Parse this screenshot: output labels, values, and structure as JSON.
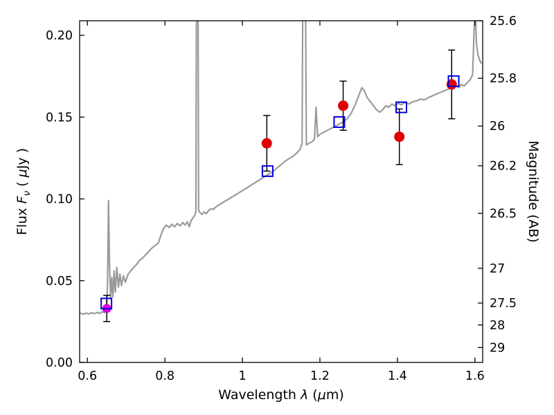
{
  "axes": {
    "xlabel": {
      "prefix": "Wavelength ",
      "symbol": "λ",
      "mid": " (",
      "unit": "μ",
      "suffix": "m)"
    },
    "ylabel_left": {
      "prefix": "Flux ",
      "symbol": "F",
      "subscript": "ν",
      "mid": " ( ",
      "unit": "μ",
      "suffix": "Jy )"
    },
    "ylabel_right": "Magnitude (AB)"
  },
  "colors": {
    "frame": "#000000",
    "spectrum": "#9a9a9a",
    "errorbar": "#000000",
    "observed": "#e00000",
    "observed_alt": "#dd00dd",
    "model": "#0000dd",
    "background": "#ffffff"
  },
  "chart_data": {
    "type": "line",
    "title": "",
    "xlabel": "Wavelength λ (μm)",
    "ylabel": "Flux Fν (μJy)",
    "ylabel_right": "Magnitude (AB)",
    "xlim": [
      0.58,
      1.62
    ],
    "ylim": [
      0.0,
      0.20893
    ],
    "grid": false,
    "legend": "none",
    "x_ticks": [
      {
        "v": 0.6,
        "label": "0.6"
      },
      {
        "v": 0.8,
        "label": "0.8"
      },
      {
        "v": 1.0,
        "label": "1"
      },
      {
        "v": 1.2,
        "label": "1.2"
      },
      {
        "v": 1.4,
        "label": "1.4"
      },
      {
        "v": 1.6,
        "label": "1.6"
      }
    ],
    "y_ticks_left": [
      {
        "v": 0.0,
        "label": "0.00"
      },
      {
        "v": 0.05,
        "label": "0.05"
      },
      {
        "v": 0.1,
        "label": "0.10"
      },
      {
        "v": 0.15,
        "label": "0.15"
      },
      {
        "v": 0.2,
        "label": "0.20"
      }
    ],
    "y_ticks_right": [
      {
        "v": 0.20893,
        "label": "25.6"
      },
      {
        "v": 0.17378,
        "label": "25.8"
      },
      {
        "v": 0.14454,
        "label": "26"
      },
      {
        "v": 0.12023,
        "label": "26.2"
      },
      {
        "v": 0.0912,
        "label": "26.5"
      },
      {
        "v": 0.05754,
        "label": "27"
      },
      {
        "v": 0.03631,
        "label": "27.5"
      },
      {
        "v": 0.02291,
        "label": "28"
      },
      {
        "v": 0.00912,
        "label": "29"
      }
    ],
    "series": [
      {
        "name": "model-spectrum",
        "type": "line",
        "color": "#9a9a9a",
        "width": 2.2,
        "points": [
          [
            0.583,
            0.03
          ],
          [
            0.59,
            0.0295
          ],
          [
            0.597,
            0.0302
          ],
          [
            0.604,
            0.0296
          ],
          [
            0.611,
            0.0304
          ],
          [
            0.618,
            0.0298
          ],
          [
            0.625,
            0.0305
          ],
          [
            0.632,
            0.03
          ],
          [
            0.638,
            0.031
          ],
          [
            0.644,
            0.0305
          ],
          [
            0.649,
            0.0315
          ],
          [
            0.652,
            0.048
          ],
          [
            0.6545,
            0.099
          ],
          [
            0.657,
            0.06
          ],
          [
            0.66,
            0.039
          ],
          [
            0.663,
            0.052
          ],
          [
            0.666,
            0.04
          ],
          [
            0.669,
            0.056
          ],
          [
            0.672,
            0.043
          ],
          [
            0.676,
            0.058
          ],
          [
            0.68,
            0.046
          ],
          [
            0.684,
            0.054
          ],
          [
            0.688,
            0.047
          ],
          [
            0.693,
            0.053
          ],
          [
            0.698,
            0.049
          ],
          [
            0.705,
            0.054
          ],
          [
            0.712,
            0.056
          ],
          [
            0.719,
            0.058
          ],
          [
            0.727,
            0.06
          ],
          [
            0.735,
            0.0625
          ],
          [
            0.743,
            0.064
          ],
          [
            0.751,
            0.066
          ],
          [
            0.759,
            0.068
          ],
          [
            0.767,
            0.07
          ],
          [
            0.775,
            0.0715
          ],
          [
            0.783,
            0.073
          ],
          [
            0.79,
            0.078
          ],
          [
            0.797,
            0.082
          ],
          [
            0.804,
            0.084
          ],
          [
            0.811,
            0.0825
          ],
          [
            0.818,
            0.0845
          ],
          [
            0.825,
            0.083
          ],
          [
            0.832,
            0.085
          ],
          [
            0.839,
            0.0835
          ],
          [
            0.846,
            0.0855
          ],
          [
            0.852,
            0.084
          ],
          [
            0.858,
            0.086
          ],
          [
            0.863,
            0.083
          ],
          [
            0.868,
            0.087
          ],
          [
            0.873,
            0.0885
          ],
          [
            0.877,
            0.09
          ],
          [
            0.88,
            0.092
          ],
          [
            0.8823,
            0.3
          ],
          [
            0.8847,
            0.3
          ],
          [
            0.887,
            0.093
          ],
          [
            0.891,
            0.0915
          ],
          [
            0.896,
            0.0905
          ],
          [
            0.901,
            0.092
          ],
          [
            0.907,
            0.091
          ],
          [
            0.913,
            0.093
          ],
          [
            0.919,
            0.094
          ],
          [
            0.925,
            0.0935
          ],
          [
            0.931,
            0.095
          ],
          [
            0.937,
            0.096
          ],
          [
            0.944,
            0.097
          ],
          [
            0.951,
            0.098
          ],
          [
            0.958,
            0.099
          ],
          [
            0.965,
            0.1
          ],
          [
            0.972,
            0.101
          ],
          [
            0.979,
            0.102
          ],
          [
            0.986,
            0.103
          ],
          [
            0.993,
            0.104
          ],
          [
            1.0,
            0.105
          ],
          [
            1.01,
            0.1065
          ],
          [
            1.02,
            0.108
          ],
          [
            1.03,
            0.1095
          ],
          [
            1.04,
            0.111
          ],
          [
            1.05,
            0.1125
          ],
          [
            1.06,
            0.114
          ],
          [
            1.07,
            0.1155
          ],
          [
            1.08,
            0.117
          ],
          [
            1.09,
            0.119
          ],
          [
            1.1,
            0.121
          ],
          [
            1.11,
            0.123
          ],
          [
            1.12,
            0.1245
          ],
          [
            1.13,
            0.126
          ],
          [
            1.14,
            0.128
          ],
          [
            1.148,
            0.13
          ],
          [
            1.154,
            0.134
          ],
          [
            1.1575,
            0.3
          ],
          [
            1.161,
            0.3
          ],
          [
            1.165,
            0.133
          ],
          [
            1.172,
            0.134
          ],
          [
            1.18,
            0.135
          ],
          [
            1.186,
            0.1365
          ],
          [
            1.19,
            0.156
          ],
          [
            1.194,
            0.138
          ],
          [
            1.2,
            0.1395
          ],
          [
            1.21,
            0.1408
          ],
          [
            1.22,
            0.142
          ],
          [
            1.23,
            0.1432
          ],
          [
            1.24,
            0.1445
          ],
          [
            1.25,
            0.1458
          ],
          [
            1.26,
            0.147
          ],
          [
            1.27,
            0.149
          ],
          [
            1.28,
            0.152
          ],
          [
            1.29,
            0.157
          ],
          [
            1.3,
            0.163
          ],
          [
            1.308,
            0.168
          ],
          [
            1.315,
            0.166
          ],
          [
            1.322,
            0.162
          ],
          [
            1.33,
            0.1595
          ],
          [
            1.338,
            0.157
          ],
          [
            1.346,
            0.1545
          ],
          [
            1.354,
            0.153
          ],
          [
            1.362,
            0.1545
          ],
          [
            1.37,
            0.157
          ],
          [
            1.378,
            0.156
          ],
          [
            1.386,
            0.158
          ],
          [
            1.394,
            0.157
          ],
          [
            1.402,
            0.1585
          ],
          [
            1.41,
            0.1575
          ],
          [
            1.42,
            0.159
          ],
          [
            1.43,
            0.158
          ],
          [
            1.44,
            0.1595
          ],
          [
            1.45,
            0.16
          ],
          [
            1.46,
            0.161
          ],
          [
            1.47,
            0.1605
          ],
          [
            1.48,
            0.162
          ],
          [
            1.49,
            0.163
          ],
          [
            1.5,
            0.164
          ],
          [
            1.51,
            0.165
          ],
          [
            1.52,
            0.166
          ],
          [
            1.53,
            0.167
          ],
          [
            1.54,
            0.168
          ],
          [
            1.55,
            0.1695
          ],
          [
            1.558,
            0.168
          ],
          [
            1.565,
            0.17
          ],
          [
            1.572,
            0.169
          ],
          [
            1.58,
            0.171
          ],
          [
            1.588,
            0.173
          ],
          [
            1.594,
            0.176
          ],
          [
            1.599,
            0.21
          ],
          [
            1.6015,
            0.212
          ],
          [
            1.604,
            0.195
          ],
          [
            1.608,
            0.188
          ],
          [
            1.612,
            0.185
          ],
          [
            1.616,
            0.183
          ]
        ]
      },
      {
        "name": "observed-photometry",
        "type": "scatter",
        "marker": "circle",
        "size": 15,
        "color": "#e00000",
        "errorbar_color": "#000000",
        "points": [
          [
            1.063,
            0.134
          ],
          [
            1.26,
            0.157
          ],
          [
            1.405,
            0.138
          ],
          [
            1.54,
            0.17
          ]
        ],
        "yerr": [
          0.017,
          0.015,
          0.017,
          0.021
        ]
      },
      {
        "name": "observed-photometry-magenta",
        "type": "scatter",
        "marker": "circle",
        "size": 13,
        "color": "#dd00dd",
        "errorbar_color": "#000000",
        "points": [
          [
            0.65,
            0.033
          ]
        ],
        "yerr": [
          0.008
        ]
      },
      {
        "name": "model-photometry",
        "type": "scatter",
        "marker": "square-open",
        "size": 15,
        "color": "#0000dd",
        "points": [
          [
            0.649,
            0.036
          ],
          [
            1.065,
            0.117
          ],
          [
            1.25,
            0.147
          ],
          [
            1.41,
            0.156
          ],
          [
            1.545,
            0.172
          ]
        ]
      }
    ]
  }
}
